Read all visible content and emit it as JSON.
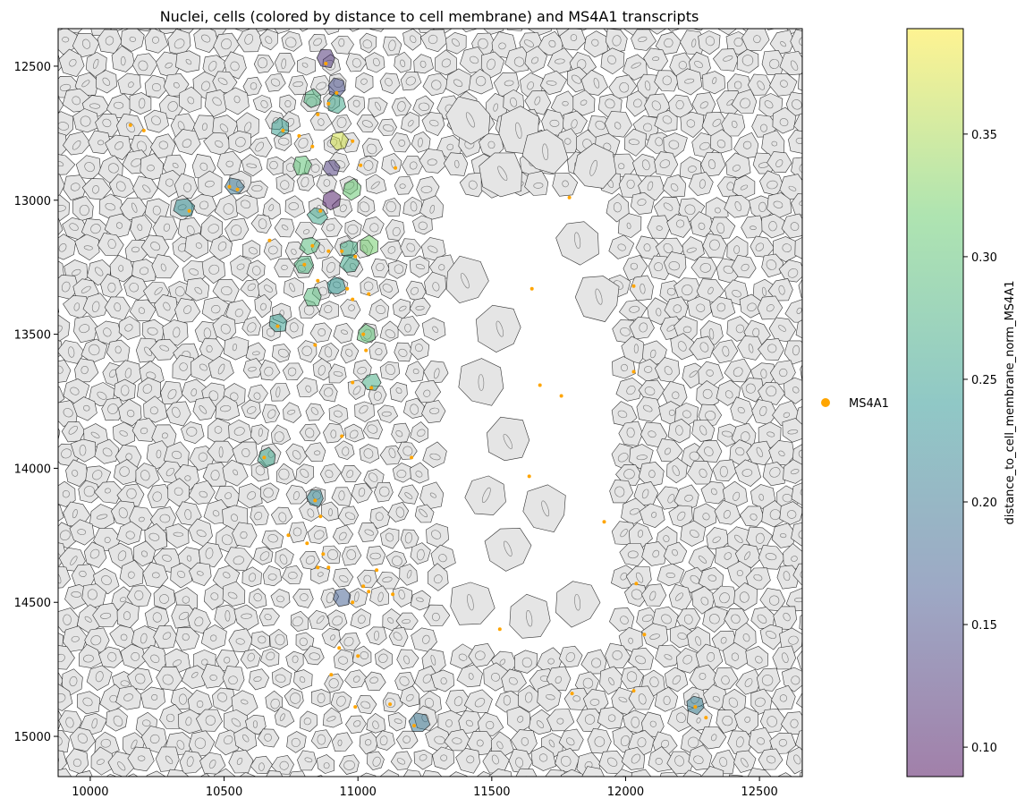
{
  "chart_data": {
    "type": "scatter",
    "title": "Nuclei, cells (colored by distance to cell membrane) and MS4A1 transcripts",
    "xlim": [
      9880,
      12660
    ],
    "ylim": [
      15150,
      12360
    ],
    "y_inverted": true,
    "x_ticks": [
      "10000",
      "10500",
      "11000",
      "11500",
      "12000",
      "12500"
    ],
    "x_tick_values": [
      10000,
      10500,
      11000,
      11500,
      12000,
      12500
    ],
    "y_ticks": [
      "12500",
      "13000",
      "13500",
      "14000",
      "14500",
      "15000"
    ],
    "y_tick_values": [
      12500,
      13000,
      13500,
      14000,
      14500,
      15000
    ],
    "cell_fill_color": "#e5e5e5",
    "cell_edge_color": "#333333",
    "nucleus_edge_color": "#777777",
    "transcript_color": "#ffa500",
    "legend": {
      "placement": "right",
      "entries": [
        {
          "label": "MS4A1",
          "color": "#ffa500",
          "marker": "circle"
        }
      ]
    },
    "colorbar": {
      "label": "distance_to_cell_membrane_norm_MS4A1",
      "vmin": 0.088,
      "vmax": 0.393,
      "ticks": [
        "0.10",
        "0.15",
        "0.20",
        "0.25",
        "0.30",
        "0.35"
      ],
      "tick_values": [
        0.1,
        0.15,
        0.2,
        0.25,
        0.3,
        0.35
      ],
      "colormap": "viridis",
      "alpha": 0.5
    },
    "empty_regions": [
      {
        "x": [
          11320,
          11960
        ],
        "y": [
          12950,
          14650
        ]
      }
    ],
    "colored_cells": [
      {
        "x": 10880,
        "y": 12470,
        "value": 0.12
      },
      {
        "x": 10920,
        "y": 12580,
        "value": 0.15
      },
      {
        "x": 10830,
        "y": 12620,
        "value": 0.28
      },
      {
        "x": 10920,
        "y": 12640,
        "value": 0.26
      },
      {
        "x": 10710,
        "y": 12730,
        "value": 0.25
      },
      {
        "x": 10930,
        "y": 12780,
        "value": 0.37
      },
      {
        "x": 10790,
        "y": 12870,
        "value": 0.3
      },
      {
        "x": 10900,
        "y": 12880,
        "value": 0.13
      },
      {
        "x": 10540,
        "y": 12950,
        "value": 0.2
      },
      {
        "x": 10980,
        "y": 12960,
        "value": 0.31
      },
      {
        "x": 10900,
        "y": 13000,
        "value": 0.1
      },
      {
        "x": 10350,
        "y": 13030,
        "value": 0.23
      },
      {
        "x": 10850,
        "y": 13060,
        "value": 0.26
      },
      {
        "x": 10820,
        "y": 13170,
        "value": 0.29
      },
      {
        "x": 10970,
        "y": 13180,
        "value": 0.27
      },
      {
        "x": 11040,
        "y": 13170,
        "value": 0.32
      },
      {
        "x": 10800,
        "y": 13240,
        "value": 0.28
      },
      {
        "x": 10970,
        "y": 13240,
        "value": 0.26
      },
      {
        "x": 10920,
        "y": 13320,
        "value": 0.24
      },
      {
        "x": 10830,
        "y": 13360,
        "value": 0.29
      },
      {
        "x": 10700,
        "y": 13460,
        "value": 0.25
      },
      {
        "x": 11030,
        "y": 13500,
        "value": 0.3
      },
      {
        "x": 11050,
        "y": 13680,
        "value": 0.27
      },
      {
        "x": 10660,
        "y": 13960,
        "value": 0.26
      },
      {
        "x": 10840,
        "y": 14110,
        "value": 0.22
      },
      {
        "x": 10940,
        "y": 14480,
        "value": 0.17
      },
      {
        "x": 11230,
        "y": 14950,
        "value": 0.2
      },
      {
        "x": 12260,
        "y": 14880,
        "value": 0.21
      }
    ],
    "transcripts": [
      [
        10880,
        12490
      ],
      [
        10920,
        12600
      ],
      [
        10890,
        12640
      ],
      [
        10850,
        12680
      ],
      [
        10150,
        12720
      ],
      [
        10200,
        12740
      ],
      [
        10720,
        12740
      ],
      [
        10780,
        12760
      ],
      [
        10980,
        12780
      ],
      [
        10830,
        12800
      ],
      [
        11010,
        12870
      ],
      [
        11140,
        12880
      ],
      [
        10520,
        12950
      ],
      [
        10550,
        12960
      ],
      [
        10370,
        13040
      ],
      [
        10860,
        13040
      ],
      [
        11790,
        12990
      ],
      [
        10670,
        13150
      ],
      [
        10830,
        13170
      ],
      [
        10890,
        13190
      ],
      [
        10940,
        13190
      ],
      [
        10990,
        13210
      ],
      [
        10800,
        13240
      ],
      [
        10850,
        13300
      ],
      [
        10960,
        13330
      ],
      [
        10980,
        13370
      ],
      [
        11040,
        13350
      ],
      [
        11650,
        13330
      ],
      [
        12030,
        13320
      ],
      [
        10700,
        13470
      ],
      [
        10840,
        13540
      ],
      [
        11020,
        13500
      ],
      [
        11030,
        13560
      ],
      [
        10980,
        13680
      ],
      [
        11050,
        13700
      ],
      [
        11680,
        13690
      ],
      [
        11760,
        13730
      ],
      [
        12030,
        13640
      ],
      [
        10940,
        13880
      ],
      [
        11200,
        13960
      ],
      [
        10650,
        13960
      ],
      [
        11640,
        14030
      ],
      [
        10840,
        14120
      ],
      [
        10860,
        14180
      ],
      [
        10740,
        14250
      ],
      [
        10810,
        14280
      ],
      [
        10870,
        14320
      ],
      [
        11920,
        14200
      ],
      [
        10850,
        14370
      ],
      [
        10890,
        14370
      ],
      [
        11070,
        14380
      ],
      [
        11020,
        14440
      ],
      [
        11040,
        14460
      ],
      [
        10980,
        14500
      ],
      [
        12040,
        14430
      ],
      [
        11130,
        14470
      ],
      [
        11530,
        14600
      ],
      [
        12070,
        14620
      ],
      [
        10930,
        14670
      ],
      [
        11000,
        14700
      ],
      [
        10900,
        14770
      ],
      [
        11800,
        14840
      ],
      [
        12030,
        14830
      ],
      [
        11120,
        14880
      ],
      [
        10990,
        14890
      ],
      [
        11210,
        14960
      ],
      [
        12260,
        14890
      ],
      [
        12300,
        14930
      ]
    ]
  }
}
